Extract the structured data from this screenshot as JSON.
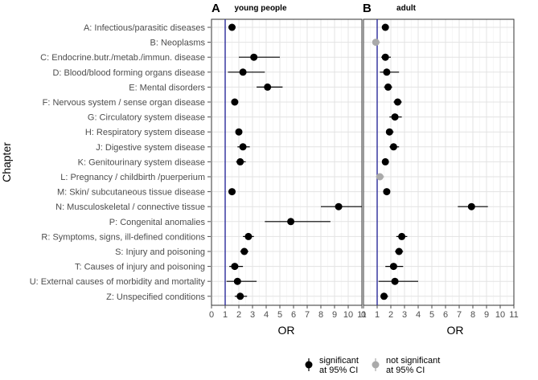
{
  "chart_data": {
    "type": "forest",
    "ylabel": "Chapter",
    "xlabel": "OR",
    "xlim": [
      0,
      11
    ],
    "xticks": [
      "0",
      "1",
      "2",
      "3",
      "4",
      "5",
      "6",
      "7",
      "8",
      "9",
      "10",
      "11"
    ],
    "reference_line": 1,
    "reference_color": "#2b2b9a",
    "categories": [
      "A: Infectious/parasitic diseases",
      "B: Neoplasms",
      "C: Endocrine.butr./metab./immun. disease",
      "D: Blood/blood forming organs disease",
      "E: Mental disorders",
      "F: Nervous system / sense organ disease",
      "G: Circulatory system disease",
      "H: Respiratory system disease",
      "J: Digestive system disease",
      "K: Genitourinary system disease",
      "L: Pregnancy / childbirth /puerperium",
      "M: Skin/ subcutaneous tissue disease",
      "N: Musculoskeletal / connective tissue",
      "P: Congenital anomalies",
      "R: Symptoms, signs, ill-defined conditions",
      "S: Injury and poisoning",
      "T: Causes of injury and poisoning",
      "U: External causes of morbidity and mortality",
      "Z: Unspecified conditions"
    ],
    "panels": [
      {
        "letter": "A",
        "title": "young people",
        "points": [
          {
            "or": 1.5,
            "lo": 1.3,
            "hi": 1.7,
            "sig": true
          },
          null,
          {
            "or": 3.1,
            "lo": 2.0,
            "hi": 5.0,
            "sig": true
          },
          {
            "or": 2.3,
            "lo": 1.2,
            "hi": 3.9,
            "sig": true
          },
          {
            "or": 4.1,
            "lo": 3.3,
            "hi": 5.2,
            "sig": true
          },
          {
            "or": 1.7,
            "lo": 1.5,
            "hi": 1.9,
            "sig": true
          },
          null,
          {
            "or": 2.0,
            "lo": 1.8,
            "hi": 2.2,
            "sig": true
          },
          {
            "or": 2.3,
            "lo": 1.9,
            "hi": 2.8,
            "sig": true
          },
          {
            "or": 2.1,
            "lo": 1.8,
            "hi": 2.5,
            "sig": true
          },
          null,
          {
            "or": 1.5,
            "lo": 1.3,
            "hi": 1.7,
            "sig": true
          },
          {
            "or": 9.3,
            "lo": 8.0,
            "hi": 11.0,
            "sig": true
          },
          {
            "or": 5.8,
            "lo": 3.9,
            "hi": 8.7,
            "sig": true
          },
          {
            "or": 2.7,
            "lo": 2.3,
            "hi": 3.1,
            "sig": true
          },
          {
            "or": 2.4,
            "lo": 2.1,
            "hi": 2.7,
            "sig": true
          },
          {
            "or": 1.7,
            "lo": 1.3,
            "hi": 2.3,
            "sig": true
          },
          {
            "or": 1.9,
            "lo": 1.1,
            "hi": 3.3,
            "sig": true
          },
          {
            "or": 2.1,
            "lo": 1.7,
            "hi": 2.6,
            "sig": true
          }
        ]
      },
      {
        "letter": "B",
        "title": "adult",
        "points": [
          {
            "or": 1.6,
            "lo": 1.4,
            "hi": 1.8,
            "sig": true
          },
          {
            "or": 0.9,
            "lo": 0.7,
            "hi": 1.2,
            "sig": false
          },
          {
            "or": 1.6,
            "lo": 1.3,
            "hi": 2.0,
            "sig": true
          },
          {
            "or": 1.7,
            "lo": 1.2,
            "hi": 2.6,
            "sig": true
          },
          {
            "or": 1.8,
            "lo": 1.5,
            "hi": 2.1,
            "sig": true
          },
          {
            "or": 2.5,
            "lo": 2.2,
            "hi": 2.8,
            "sig": true
          },
          {
            "or": 2.3,
            "lo": 1.9,
            "hi": 2.8,
            "sig": true
          },
          {
            "or": 1.9,
            "lo": 1.7,
            "hi": 2.2,
            "sig": true
          },
          {
            "or": 2.2,
            "lo": 1.9,
            "hi": 2.6,
            "sig": true
          },
          {
            "or": 1.6,
            "lo": 1.4,
            "hi": 1.8,
            "sig": true
          },
          {
            "or": 1.2,
            "lo": 0.9,
            "hi": 1.5,
            "sig": false
          },
          {
            "or": 1.7,
            "lo": 1.5,
            "hi": 1.9,
            "sig": true
          },
          {
            "or": 7.9,
            "lo": 6.9,
            "hi": 9.1,
            "sig": true
          },
          null,
          {
            "or": 2.8,
            "lo": 2.4,
            "hi": 3.2,
            "sig": true
          },
          {
            "or": 2.6,
            "lo": 2.3,
            "hi": 2.9,
            "sig": true
          },
          {
            "or": 2.2,
            "lo": 1.6,
            "hi": 2.9,
            "sig": true
          },
          {
            "or": 2.3,
            "lo": 1.1,
            "hi": 4.0,
            "sig": true
          },
          {
            "or": 1.5,
            "lo": 1.3,
            "hi": 1.8,
            "sig": true
          }
        ]
      }
    ],
    "legend": [
      {
        "key": "sig",
        "line1": "significant",
        "line2": "at 95% CI",
        "color": "#000000"
      },
      {
        "key": "nonsig",
        "line1": "not significant",
        "line2": "at 95% CI",
        "color": "#aaaaaa"
      }
    ]
  }
}
